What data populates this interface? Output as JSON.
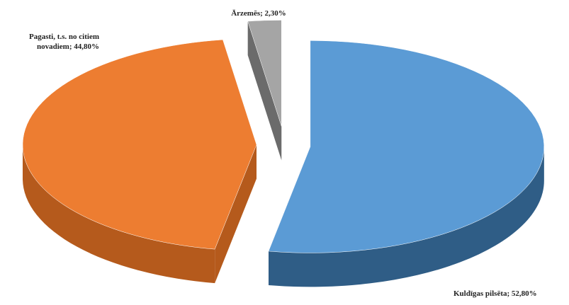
{
  "chart_data": {
    "type": "pie",
    "values": [
      52.8,
      44.8,
      2.3
    ],
    "value_labels": [
      "Kuldīgas pilsēta; 52,80%",
      "Pagasti, t.s. no citiem novadiem; 44,80%",
      "Ārzemēs; 2,30%"
    ],
    "colors": [
      "#5b9bd5",
      "#ed7d31",
      "#a5a5a5"
    ],
    "side_colors": [
      "#2f5d86",
      "#b55a1c",
      "#6b6b6b"
    ]
  }
}
